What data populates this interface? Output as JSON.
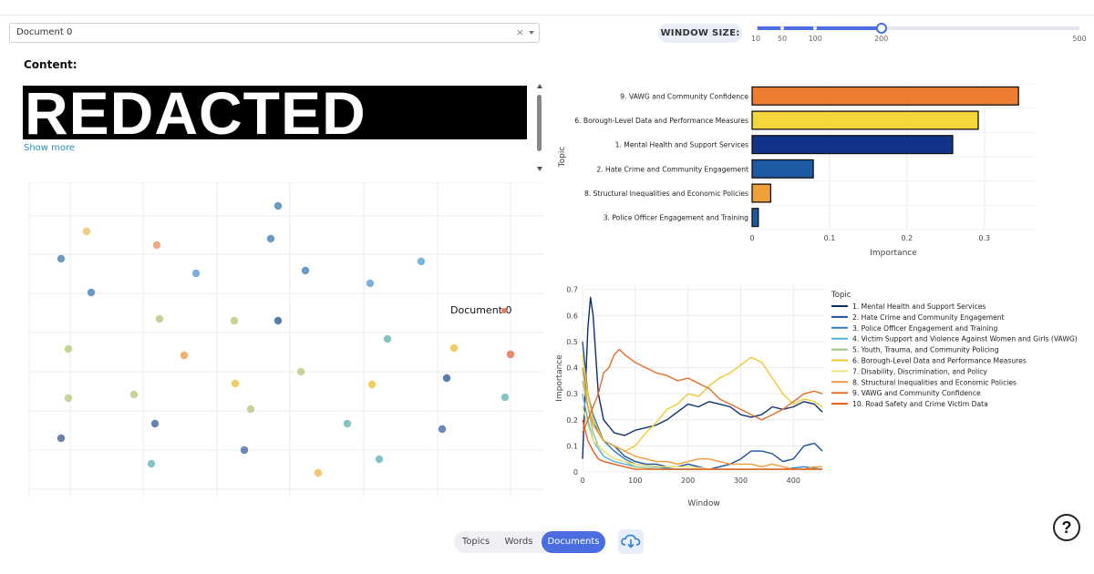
{
  "document_select": {
    "value": "Document 0",
    "clear_icon": "close-icon",
    "caret_icon": "chevron-down-icon"
  },
  "window_size": {
    "label": "WINDOW SIZE:",
    "marks": [
      "10",
      "50",
      "100",
      "200",
      "500"
    ],
    "mark_values": [
      10,
      50,
      100,
      200,
      500
    ],
    "value": 200,
    "min": 10,
    "max": 500,
    "accent": "#4a6ee0"
  },
  "content": {
    "label": "Content:",
    "redacted_text": "REDACTED",
    "show_more": "Show more"
  },
  "scatter": {
    "annotation": "Document 0",
    "points": [
      {
        "c": "#5b8fbf"
      },
      {
        "c": "#f2c57c"
      },
      {
        "c": "#f0a074"
      },
      {
        "c": "#5b8fbf"
      },
      {
        "c": "#5b8fbf"
      },
      {
        "c": "#6fa6d6"
      },
      {
        "c": "#5b8fbf"
      },
      {
        "c": "#5b8fbf"
      },
      {
        "c": "#6fa6d6"
      },
      {
        "c": "#6aaed6"
      },
      {
        "c": "#bccf8e"
      },
      {
        "c": "#bccf8e"
      },
      {
        "c": "#4a6ea8"
      },
      {
        "c": "#bccf8e"
      },
      {
        "c": "#f0a85a"
      },
      {
        "c": "#78bcc0"
      },
      {
        "c": "#f0c850"
      },
      {
        "c": "#e87c60"
      },
      {
        "c": "#bccf8e"
      },
      {
        "c": "#f2c850"
      },
      {
        "c": "#f2c850"
      },
      {
        "c": "#4a6ea8"
      },
      {
        "c": "#bccf8e"
      },
      {
        "c": "#bccf8e"
      },
      {
        "c": "#78bcc0"
      },
      {
        "c": "#5a74a8"
      },
      {
        "c": "#78bcc0"
      },
      {
        "c": "#5b7bb0"
      },
      {
        "c": "#bccf8e"
      },
      {
        "c": "#5a74a8"
      },
      {
        "c": "#5b7bb0"
      },
      {
        "c": "#78bcc0"
      },
      {
        "c": "#78bcc0"
      },
      {
        "c": "#f5c060"
      }
    ]
  },
  "chart_data": [
    {
      "type": "bar",
      "orientation": "horizontal",
      "categories": [
        "9. VAWG and Community Confidence",
        "6. Borough-Level Data and Performance Measures",
        "1. Mental Health and Support Services",
        "2. Hate Crime and Community Engagement",
        "8. Structural Inequalities and Economic Policies",
        "3. Police Officer Engagement and Training"
      ],
      "values": [
        0.344,
        0.292,
        0.259,
        0.079,
        0.024,
        0.008
      ],
      "colors": [
        "#ed7d31",
        "#f4d63a",
        "#12338a",
        "#1e5aa3",
        "#f0a03a",
        "#1e5aa3"
      ],
      "xlabel": "Importance",
      "ylabel": "Topic",
      "xticks": [
        "0",
        "0.1",
        "0.2",
        "0.3"
      ],
      "xtick_values": [
        0,
        0.1,
        0.2,
        0.3
      ],
      "xlim": [
        0,
        0.365
      ]
    },
    {
      "type": "line",
      "xlabel": "Window",
      "ylabel": "Importance",
      "legend_title": "Topic",
      "xticks": [
        "0",
        "100",
        "200",
        "300",
        "400"
      ],
      "xtick_values": [
        0,
        100,
        200,
        300,
        400
      ],
      "yticks": [
        "0",
        "0.1",
        "0.2",
        "0.3",
        "0.4",
        "0.5",
        "0.6",
        "0.7"
      ],
      "ytick_values": [
        0,
        0.1,
        0.2,
        0.3,
        0.4,
        0.5,
        0.6,
        0.7
      ],
      "xlim": [
        0,
        460
      ],
      "ylim": [
        0,
        0.72
      ],
      "series": [
        {
          "name": "1. Mental Health and Support Services",
          "color": "#0d2f6e",
          "x": [
            0,
            5,
            10,
            15,
            20,
            30,
            40,
            60,
            80,
            100,
            120,
            140,
            160,
            180,
            200,
            220,
            240,
            260,
            280,
            300,
            320,
            340,
            360,
            380,
            400,
            420,
            440,
            455
          ],
          "y": [
            0.05,
            0.3,
            0.55,
            0.67,
            0.6,
            0.3,
            0.2,
            0.15,
            0.14,
            0.16,
            0.17,
            0.18,
            0.2,
            0.23,
            0.26,
            0.25,
            0.27,
            0.26,
            0.25,
            0.22,
            0.21,
            0.22,
            0.25,
            0.24,
            0.25,
            0.27,
            0.26,
            0.23
          ]
        },
        {
          "name": "2. Hate Crime and Community Engagement",
          "color": "#1a4f9c",
          "x": [
            0,
            10,
            20,
            30,
            40,
            60,
            80,
            100,
            120,
            140,
            160,
            180,
            200,
            220,
            240,
            260,
            280,
            300,
            320,
            340,
            360,
            380,
            400,
            420,
            440,
            455
          ],
          "y": [
            0.5,
            0.3,
            0.2,
            0.15,
            0.12,
            0.1,
            0.06,
            0.04,
            0.03,
            0.03,
            0.02,
            0.02,
            0.03,
            0.02,
            0.01,
            0.02,
            0.03,
            0.05,
            0.08,
            0.08,
            0.07,
            0.04,
            0.05,
            0.1,
            0.11,
            0.08
          ]
        },
        {
          "name": "3. Police Officer Engagement and Training",
          "color": "#2a7fc0",
          "x": [
            0,
            10,
            20,
            40,
            60,
            80,
            100,
            140,
            180,
            220,
            260,
            300,
            340,
            380,
            420,
            455
          ],
          "y": [
            0.4,
            0.3,
            0.22,
            0.12,
            0.08,
            0.05,
            0.03,
            0.02,
            0.01,
            0.01,
            0.01,
            0.01,
            0.01,
            0.01,
            0.02,
            0.01
          ]
        },
        {
          "name": "4. Victim Support and Violence Against Women and Girls (VAWG)",
          "color": "#58b0d6",
          "x": [
            0,
            10,
            20,
            40,
            60,
            80,
            100,
            150,
            200,
            250,
            300,
            350,
            400,
            455
          ],
          "y": [
            0.3,
            0.2,
            0.12,
            0.06,
            0.04,
            0.03,
            0.02,
            0.01,
            0.01,
            0.01,
            0.01,
            0.01,
            0.01,
            0.01
          ]
        },
        {
          "name": "5. Youth, Trauma, and Community Policing",
          "color": "#98c878",
          "x": [
            0,
            10,
            20,
            30,
            40,
            60,
            80,
            100,
            150,
            200,
            250,
            300,
            350,
            400,
            455
          ],
          "y": [
            0.35,
            0.25,
            0.15,
            0.1,
            0.08,
            0.05,
            0.04,
            0.02,
            0.01,
            0.01,
            0.01,
            0.01,
            0.01,
            0.01,
            0.01
          ]
        },
        {
          "name": "6. Borough-Level Data and Performance Measures",
          "color": "#f0c830",
          "x": [
            0,
            10,
            20,
            40,
            60,
            80,
            100,
            120,
            140,
            160,
            180,
            200,
            220,
            240,
            260,
            280,
            300,
            320,
            340,
            360,
            380,
            400,
            420,
            440,
            455
          ],
          "y": [
            0.45,
            0.3,
            0.2,
            0.12,
            0.1,
            0.08,
            0.1,
            0.15,
            0.19,
            0.24,
            0.26,
            0.3,
            0.29,
            0.33,
            0.36,
            0.38,
            0.41,
            0.44,
            0.42,
            0.36,
            0.3,
            0.26,
            0.28,
            0.27,
            0.25
          ]
        },
        {
          "name": "7. Disability, Discrimination, and Policy",
          "color": "#f3e27a",
          "x": [
            0,
            10,
            20,
            40,
            60,
            80,
            100,
            150,
            200,
            250,
            300,
            350,
            400,
            455
          ],
          "y": [
            0.25,
            0.18,
            0.12,
            0.08,
            0.05,
            0.04,
            0.03,
            0.02,
            0.02,
            0.01,
            0.01,
            0.01,
            0.01,
            0.01
          ]
        },
        {
          "name": "8. Structural Inequalities and Economic Policies",
          "color": "#f09a3a",
          "x": [
            0,
            10,
            20,
            40,
            60,
            80,
            100,
            120,
            140,
            160,
            180,
            200,
            220,
            240,
            260,
            280,
            300,
            320,
            340,
            360,
            380,
            400,
            420,
            440,
            455
          ],
          "y": [
            0.4,
            0.25,
            0.18,
            0.12,
            0.1,
            0.08,
            0.06,
            0.05,
            0.04,
            0.04,
            0.03,
            0.04,
            0.05,
            0.05,
            0.04,
            0.03,
            0.03,
            0.03,
            0.02,
            0.03,
            0.02,
            0.01,
            0.01,
            0.02,
            0.02
          ]
        },
        {
          "name": "9. VAWG and Community Confidence",
          "color": "#e46e28",
          "x": [
            0,
            10,
            20,
            30,
            40,
            50,
            60,
            70,
            80,
            100,
            120,
            140,
            160,
            180,
            200,
            220,
            240,
            260,
            280,
            300,
            320,
            340,
            360,
            380,
            400,
            420,
            440,
            455
          ],
          "y": [
            0.15,
            0.2,
            0.25,
            0.3,
            0.38,
            0.4,
            0.45,
            0.47,
            0.45,
            0.42,
            0.4,
            0.38,
            0.37,
            0.35,
            0.36,
            0.34,
            0.32,
            0.28,
            0.26,
            0.24,
            0.22,
            0.2,
            0.22,
            0.24,
            0.27,
            0.3,
            0.31,
            0.3
          ]
        },
        {
          "name": "10. Road Safety and Crime Victim Data",
          "color": "#ee5a18",
          "x": [
            0,
            10,
            20,
            30,
            40,
            60,
            80,
            100,
            150,
            200,
            250,
            300,
            350,
            400,
            455
          ],
          "y": [
            0.2,
            0.12,
            0.08,
            0.05,
            0.04,
            0.03,
            0.02,
            0.01,
            0.01,
            0.01,
            0.01,
            0.01,
            0.01,
            0.01,
            0.01
          ]
        }
      ]
    }
  ],
  "bottom_bar": {
    "tabs": [
      "Topics",
      "Words",
      "Documents"
    ],
    "active_tab": "Documents",
    "cloud_icon": "cloud-download-icon",
    "help_label": "?"
  }
}
